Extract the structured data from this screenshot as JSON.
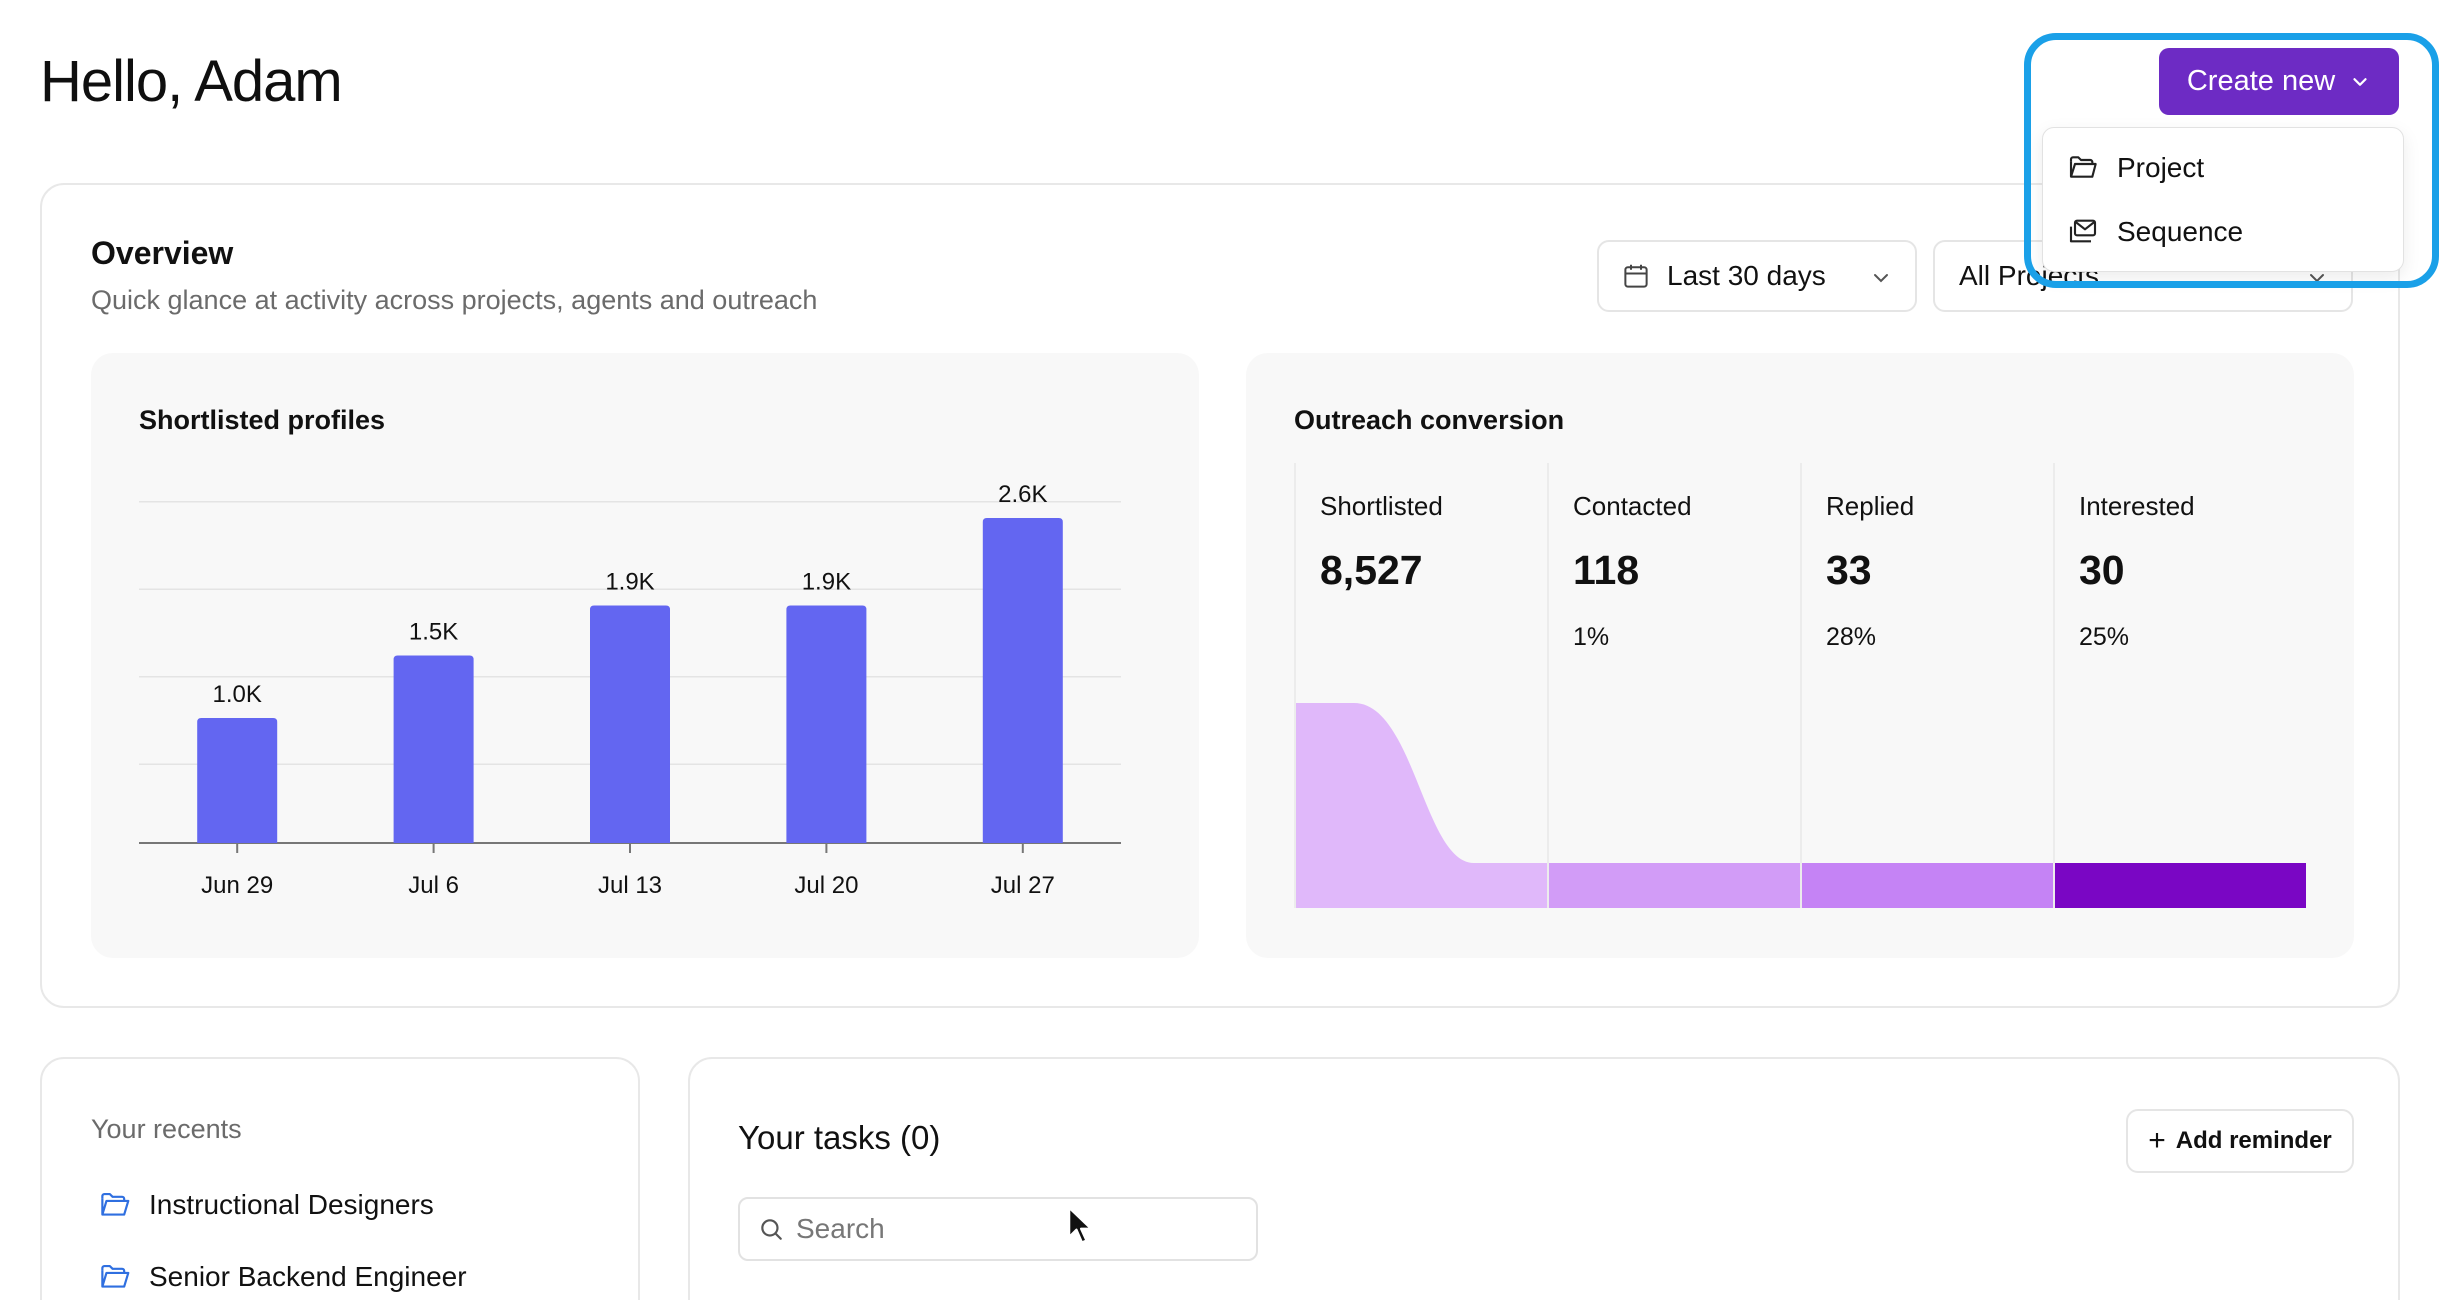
{
  "header": {
    "greeting": "Hello, Adam",
    "create_label": "Create new"
  },
  "create_menu": {
    "items": [
      {
        "label": "Project",
        "icon": "folder-open-icon"
      },
      {
        "label": "Sequence",
        "icon": "mail-stack-icon"
      }
    ]
  },
  "overview": {
    "title": "Overview",
    "subtitle": "Quick glance at activity across projects, agents and outreach",
    "date_filter": "Last 30 days",
    "project_filter": "All Projects"
  },
  "shortlisted_chart": {
    "title": "Shortlisted profiles",
    "chart_data": {
      "type": "bar",
      "title": "Shortlisted profiles",
      "categories": [
        "Jun 29",
        "Jul 6",
        "Jul 13",
        "Jul 20",
        "Jul 27"
      ],
      "values": [
        1000,
        1500,
        1900,
        1900,
        2600
      ],
      "data_labels": [
        "1.0K",
        "1.5K",
        "1.9K",
        "1.9K",
        "2.6K"
      ],
      "ylim": [
        0,
        2800
      ],
      "grid": true,
      "bar_color": "#6366f1"
    }
  },
  "outreach": {
    "title": "Outreach conversion",
    "stages": [
      {
        "label": "Shortlisted",
        "value": "8,527",
        "pct": ""
      },
      {
        "label": "Contacted",
        "value": "118",
        "pct": "1%"
      },
      {
        "label": "Replied",
        "value": "33",
        "pct": "28%"
      },
      {
        "label": "Interested",
        "value": "30",
        "pct": "25%"
      }
    ],
    "colors": [
      "#e0b8fa",
      "#d29cf7",
      "#c583f5",
      "#7a06c4"
    ]
  },
  "recents": {
    "title": "Your recents",
    "items": [
      {
        "label": "Instructional Designers"
      },
      {
        "label": "Senior Backend Engineer"
      }
    ]
  },
  "tasks": {
    "title": "Your tasks (0)",
    "add_label": "Add reminder",
    "search_placeholder": "Search"
  },
  "colors": {
    "accent": "#6d2bc4",
    "highlight": "#1aa0e8"
  }
}
